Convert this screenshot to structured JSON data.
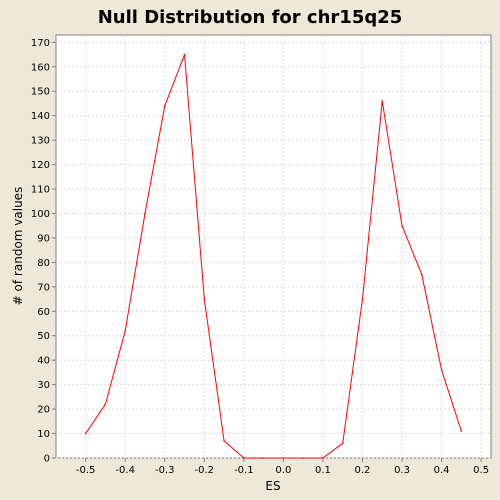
{
  "chart_data": {
    "type": "line",
    "title": "Null Distribution for chr15q25",
    "xlabel": "ES",
    "ylabel": "# of random values",
    "xlim": [
      -0.575,
      0.525
    ],
    "ylim": [
      0,
      173
    ],
    "x_ticks": [
      "-0.5",
      "-0.4",
      "-0.3",
      "-0.2",
      "-0.1",
      "0.0",
      "0.1",
      "0.2",
      "0.3",
      "0.4",
      "0.5"
    ],
    "y_ticks": [
      "0",
      "10",
      "20",
      "30",
      "40",
      "50",
      "60",
      "70",
      "80",
      "90",
      "100",
      "110",
      "120",
      "130",
      "140",
      "150",
      "160",
      "170"
    ],
    "grid": true,
    "legend": "none",
    "series": [
      {
        "color": "#ff0000",
        "points": [
          [
            -0.5,
            10
          ],
          [
            -0.45,
            22
          ],
          [
            -0.4,
            52
          ],
          [
            -0.35,
            100
          ],
          [
            -0.3,
            144
          ],
          [
            -0.25,
            165
          ],
          [
            -0.2,
            65
          ],
          [
            -0.15,
            7
          ],
          [
            -0.1,
            0
          ],
          [
            -0.05,
            0
          ],
          [
            0.0,
            0
          ],
          [
            0.05,
            0
          ],
          [
            0.1,
            0
          ],
          [
            0.15,
            6
          ],
          [
            0.2,
            65
          ],
          [
            0.25,
            146
          ],
          [
            0.3,
            95
          ],
          [
            0.35,
            75
          ],
          [
            0.4,
            36
          ],
          [
            0.45,
            11
          ]
        ]
      }
    ],
    "colors": {
      "background": "#ece9d8",
      "plot_background": "#ffffff",
      "gridline": "#dcdcdc",
      "axis": "#808080",
      "line": "#ff0000"
    }
  }
}
